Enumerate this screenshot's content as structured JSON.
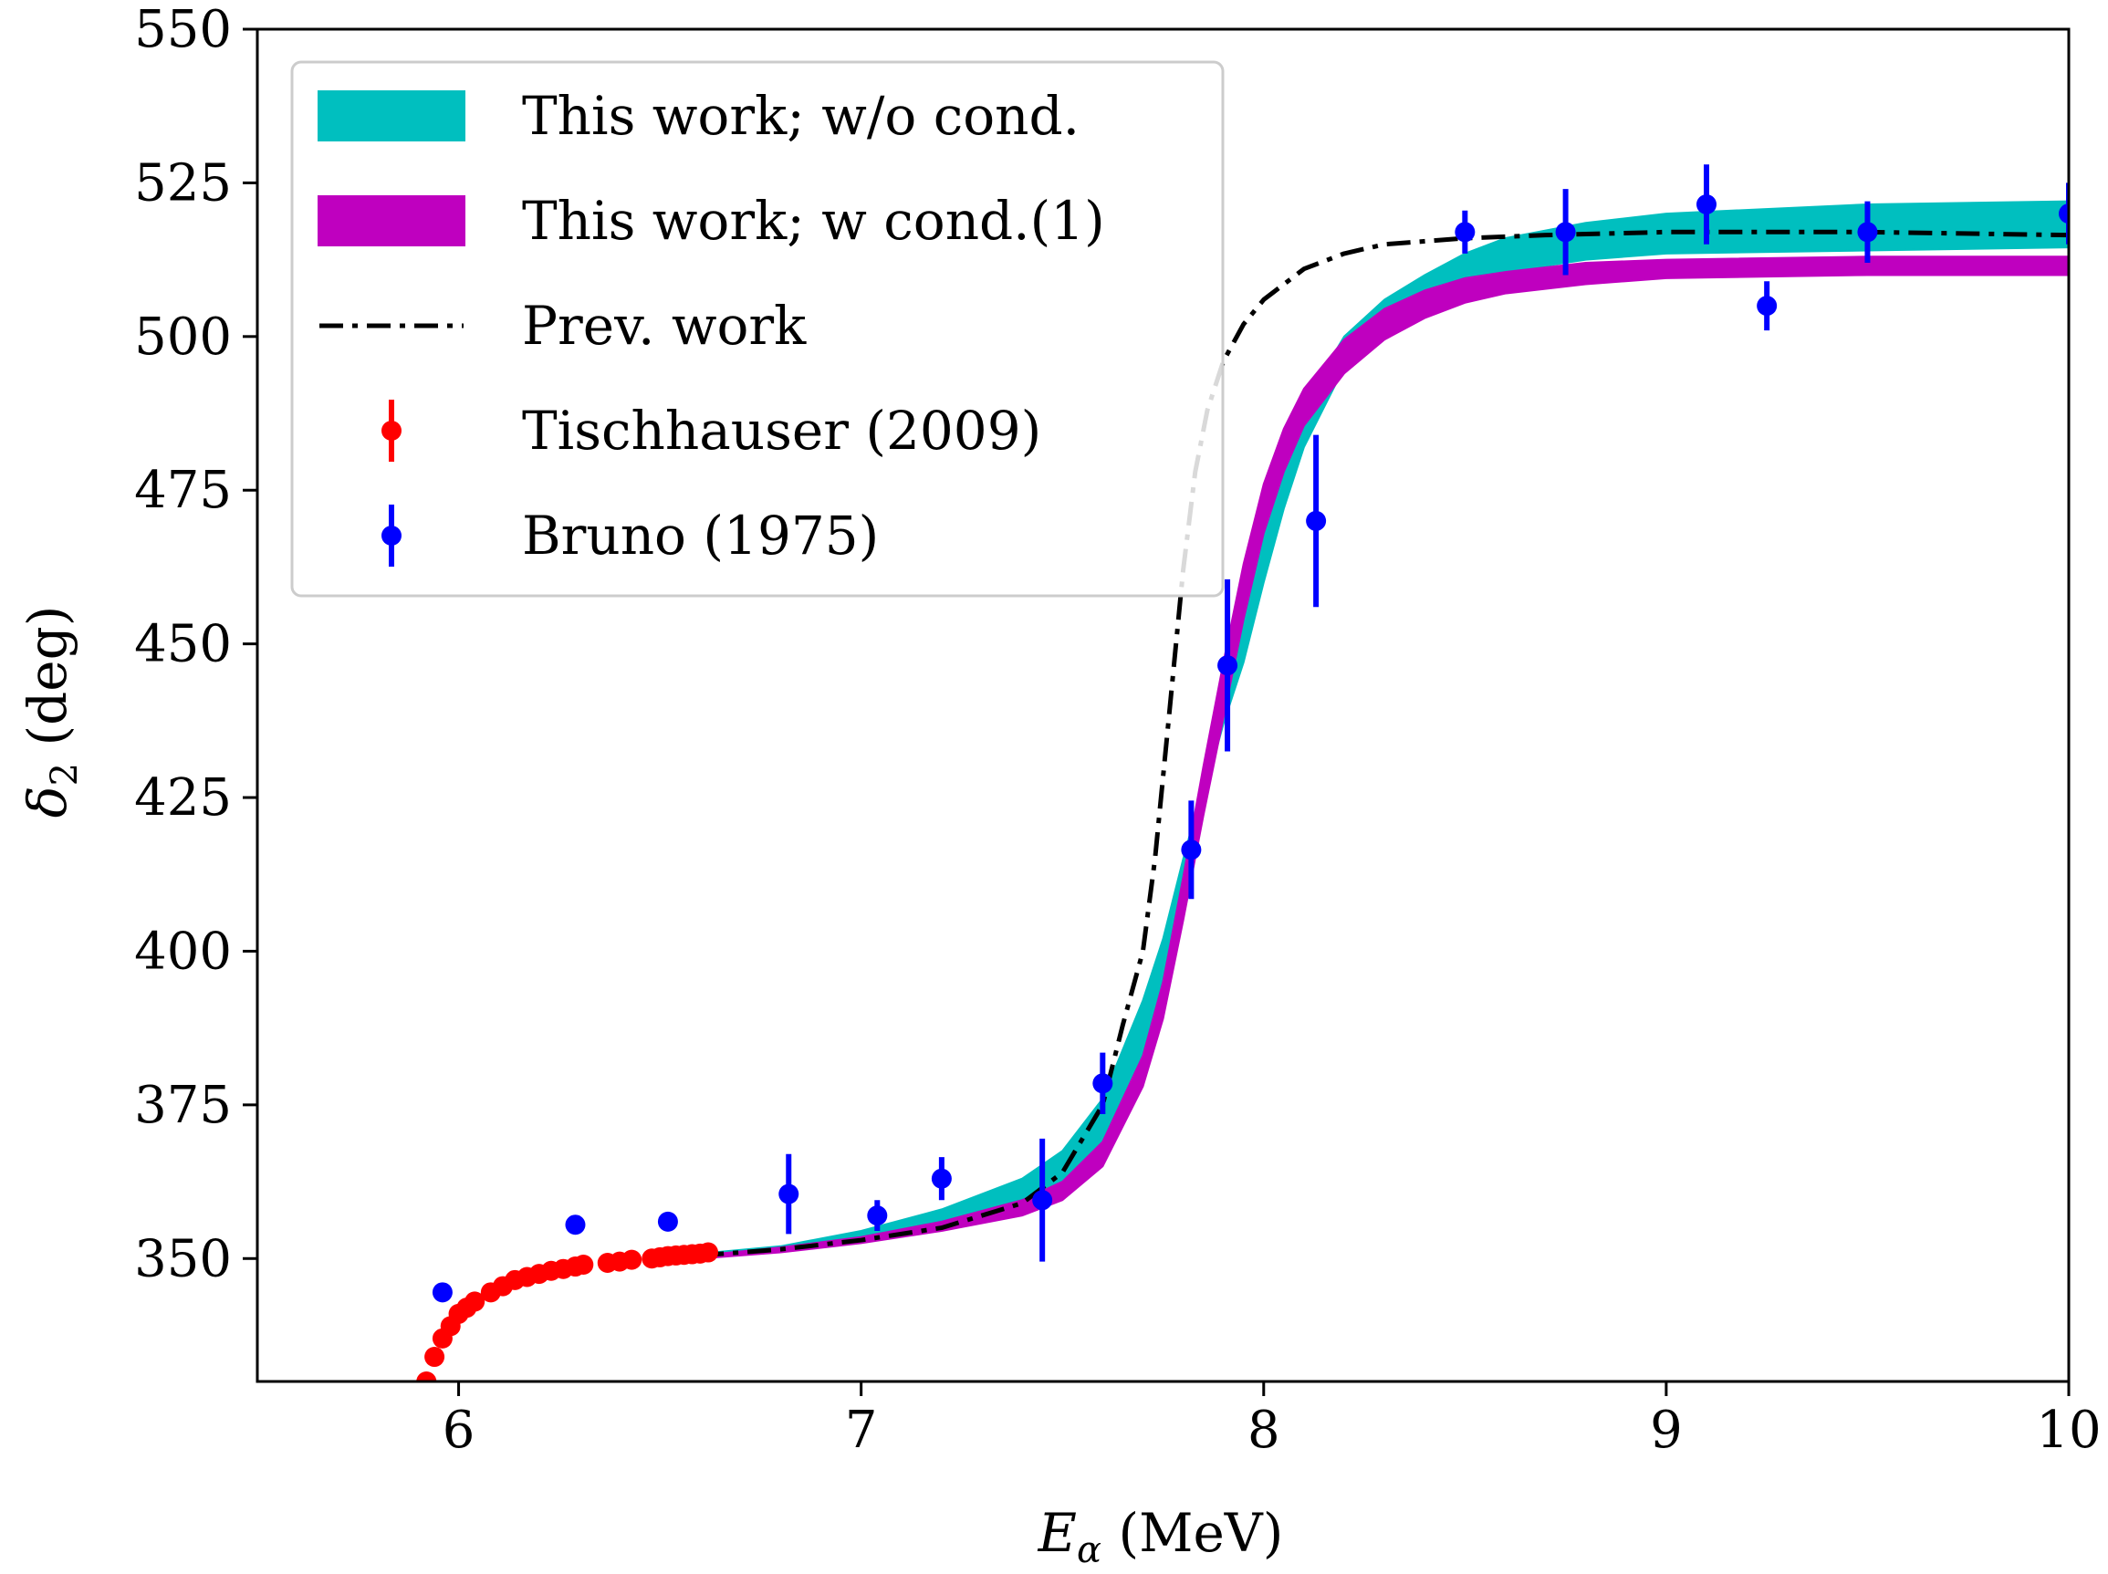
{
  "chart_data": {
    "type": "line",
    "title": "",
    "xlabel": "E_α (MeV)",
    "xlabel_parts": {
      "symbol": "E",
      "subscript": "α",
      "unit": " (MeV)"
    },
    "ylabel": "δ_2 (deg)",
    "ylabel_parts": {
      "symbol": "δ",
      "subscript": "2",
      "unit": " (deg)"
    },
    "xlim": [
      5.5,
      10.0
    ],
    "ylim": [
      330,
      550
    ],
    "xticks": [
      6,
      7,
      8,
      9,
      10
    ],
    "yticks": [
      350,
      375,
      400,
      425,
      450,
      475,
      500,
      525,
      550
    ],
    "grid": false,
    "legend_position": "top-left",
    "legend": [
      {
        "label": "This work; w/o cond.",
        "kind": "band",
        "color": "#00bfbf"
      },
      {
        "label": "This work; w cond.(1)",
        "kind": "band",
        "color": "#bf00bf"
      },
      {
        "label": "Prev. work",
        "kind": "line",
        "color": "#000000"
      },
      {
        "label": "Tischhauser (2009)",
        "kind": "errorbar",
        "color": "#ff0000"
      },
      {
        "label": "Bruno (1975)",
        "kind": "errorbar",
        "color": "#0000ff"
      }
    ],
    "series": [
      {
        "name": "This work; w/o cond.",
        "kind": "band",
        "color": "#00bfbf",
        "x": [
          6.6,
          6.8,
          7.0,
          7.2,
          7.4,
          7.5,
          7.6,
          7.7,
          7.75,
          7.8,
          7.85,
          7.9,
          7.95,
          8.0,
          8.05,
          8.1,
          8.2,
          8.3,
          8.4,
          8.5,
          8.6,
          8.8,
          9.0,
          9.5,
          10.0
        ],
        "lower": [
          350.5,
          351.5,
          353.0,
          355.5,
          358.0,
          361.0,
          367.0,
          382.0,
          393.0,
          410.0,
          425.0,
          437.0,
          447.0,
          460.0,
          472.0,
          482.0,
          495.0,
          502.0,
          506.0,
          508.5,
          510.5,
          512.5,
          513.5,
          514.0,
          514.5
        ],
        "upper": [
          350.8,
          352.0,
          354.5,
          358.0,
          363.0,
          367.5,
          376.0,
          392.0,
          402.0,
          415.0,
          427.0,
          440.0,
          453.0,
          468.0,
          480.0,
          489.0,
          500.0,
          506.0,
          510.0,
          513.5,
          516.0,
          518.5,
          520.0,
          521.5,
          522.0
        ]
      },
      {
        "name": "This work; w cond.(1)",
        "kind": "band",
        "color": "#bf00bf",
        "x": [
          6.6,
          6.8,
          7.0,
          7.2,
          7.4,
          7.5,
          7.6,
          7.7,
          7.75,
          7.8,
          7.85,
          7.9,
          7.95,
          8.0,
          8.05,
          8.1,
          8.2,
          8.3,
          8.4,
          8.5,
          8.6,
          8.8,
          9.0,
          9.5,
          10.0
        ],
        "lower": [
          350.0,
          351.0,
          352.5,
          354.5,
          357.0,
          359.5,
          365.0,
          378.0,
          389.0,
          405.0,
          422.0,
          438.0,
          454.0,
          468.0,
          478.0,
          485.5,
          494.0,
          499.5,
          503.0,
          505.5,
          507.0,
          508.5,
          509.5,
          510.0,
          510.0
        ],
        "upper": [
          350.5,
          351.8,
          353.5,
          356.0,
          359.5,
          362.5,
          369.0,
          383.0,
          395.0,
          412.0,
          430.0,
          447.0,
          463.0,
          476.0,
          485.0,
          491.5,
          499.5,
          504.5,
          507.5,
          509.5,
          510.5,
          512.0,
          512.5,
          513.0,
          513.0
        ]
      },
      {
        "name": "Prev. work",
        "kind": "line",
        "color": "#000000",
        "x": [
          6.6,
          6.8,
          7.0,
          7.2,
          7.4,
          7.5,
          7.6,
          7.65,
          7.7,
          7.73,
          7.76,
          7.8,
          7.83,
          7.86,
          7.9,
          7.95,
          8.0,
          8.1,
          8.2,
          8.3,
          8.5,
          8.7,
          9.0,
          9.5,
          10.0
        ],
        "y": [
          350.5,
          351.5,
          353.0,
          355.0,
          359.0,
          364.0,
          375.0,
          388.0,
          400.0,
          415.0,
          435.0,
          462.0,
          478.0,
          488.0,
          496.0,
          502.0,
          506.0,
          511.0,
          513.5,
          515.0,
          516.0,
          516.5,
          517.0,
          517.0,
          516.5
        ]
      },
      {
        "name": "Tischhauser (2009)",
        "kind": "errorbar",
        "color": "#ff0000",
        "x": [
          5.92,
          5.94,
          5.96,
          5.98,
          6.0,
          6.02,
          6.04,
          6.08,
          6.11,
          6.14,
          6.17,
          6.2,
          6.23,
          6.26,
          6.29,
          6.31,
          6.37,
          6.4,
          6.43,
          6.48,
          6.5,
          6.52,
          6.54,
          6.56,
          6.58,
          6.6,
          6.62
        ],
        "y": [
          330.0,
          334.0,
          337.0,
          339.0,
          341.0,
          342.0,
          343.0,
          344.5,
          345.5,
          346.5,
          347.0,
          347.5,
          348.0,
          348.3,
          348.7,
          349.0,
          349.3,
          349.5,
          349.8,
          350.0,
          350.2,
          350.4,
          350.5,
          350.6,
          350.7,
          350.8,
          351.0
        ],
        "err": [
          1.0,
          1.0,
          1.0,
          1.0,
          1.0,
          1.0,
          1.0,
          1.0,
          1.0,
          1.0,
          1.0,
          1.0,
          1.0,
          1.0,
          1.0,
          1.0,
          1.0,
          1.0,
          1.0,
          1.0,
          1.0,
          1.0,
          1.0,
          1.0,
          1.0,
          1.0,
          1.0
        ]
      },
      {
        "name": "Bruno (1975)",
        "kind": "errorbar",
        "color": "#0000ff",
        "x": [
          5.96,
          6.29,
          6.52,
          6.82,
          7.04,
          7.2,
          7.45,
          7.6,
          7.82,
          7.91,
          8.13,
          8.5,
          8.75,
          9.1,
          9.25,
          9.5,
          10.0
        ],
        "y": [
          344.5,
          355.5,
          356.0,
          360.5,
          357.0,
          363.0,
          359.5,
          378.5,
          416.5,
          446.5,
          470.0,
          517.0,
          517.0,
          521.5,
          505.0,
          517.0,
          520.0
        ],
        "err": [
          0.0,
          0.0,
          0.0,
          6.5,
          2.5,
          3.5,
          10.0,
          5.0,
          8.0,
          14.0,
          14.0,
          3.5,
          7.0,
          6.5,
          4.0,
          5.0,
          5.0
        ]
      }
    ]
  }
}
